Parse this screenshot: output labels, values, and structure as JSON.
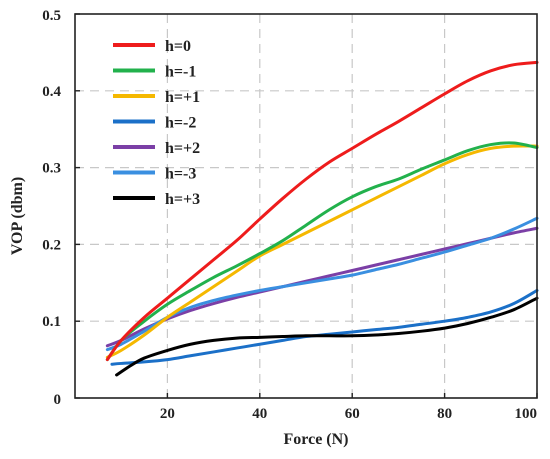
{
  "chart_data": {
    "type": "line",
    "xlabel": "Force (N)",
    "ylabel": "VOP (dbm)",
    "xlim": [
      0,
      100
    ],
    "ylim": [
      0,
      0.5
    ],
    "xticks": [
      20,
      40,
      60,
      80,
      100
    ],
    "yticks": [
      0,
      0.1,
      0.2,
      0.3,
      0.4,
      0.5
    ],
    "xtick_labels": [
      "20",
      "40",
      "60",
      "80",
      "100"
    ],
    "ytick_labels": [
      "0",
      "0.1",
      "0.2",
      "0.3",
      "0.4",
      "0.5"
    ],
    "grid": true,
    "legend_position": "top-left",
    "series": [
      {
        "name": "h=0",
        "color": "#ee1c1c",
        "x": [
          7,
          10,
          15,
          20,
          25,
          30,
          35,
          40,
          45,
          50,
          55,
          60,
          65,
          70,
          75,
          80,
          85,
          90,
          95,
          100
        ],
        "y": [
          0.05,
          0.075,
          0.105,
          0.13,
          0.155,
          0.18,
          0.205,
          0.233,
          0.26,
          0.285,
          0.307,
          0.325,
          0.343,
          0.36,
          0.378,
          0.396,
          0.413,
          0.426,
          0.434,
          0.437
        ]
      },
      {
        "name": "h=-1",
        "color": "#22b14c",
        "x": [
          7,
          10,
          15,
          20,
          25,
          30,
          35,
          40,
          45,
          50,
          55,
          60,
          65,
          70,
          75,
          80,
          85,
          90,
          95,
          100
        ],
        "y": [
          0.05,
          0.075,
          0.1,
          0.122,
          0.14,
          0.157,
          0.172,
          0.188,
          0.205,
          0.225,
          0.245,
          0.262,
          0.275,
          0.285,
          0.298,
          0.31,
          0.322,
          0.33,
          0.332,
          0.326
        ]
      },
      {
        "name": "h=+1",
        "color": "#f5b800",
        "x": [
          7,
          10,
          15,
          20,
          25,
          30,
          35,
          40,
          45,
          50,
          55,
          60,
          65,
          70,
          75,
          80,
          85,
          90,
          95,
          100
        ],
        "y": [
          0.053,
          0.062,
          0.082,
          0.105,
          0.125,
          0.145,
          0.165,
          0.185,
          0.2,
          0.215,
          0.23,
          0.245,
          0.26,
          0.275,
          0.29,
          0.305,
          0.317,
          0.325,
          0.328,
          0.328
        ]
      },
      {
        "name": "h=-2",
        "color": "#1b70c8",
        "x": [
          8,
          10,
          15,
          20,
          25,
          30,
          35,
          40,
          45,
          50,
          55,
          60,
          65,
          70,
          75,
          80,
          85,
          90,
          95,
          100
        ],
        "y": [
          0.044,
          0.045,
          0.047,
          0.05,
          0.055,
          0.06,
          0.065,
          0.07,
          0.075,
          0.08,
          0.083,
          0.086,
          0.089,
          0.092,
          0.096,
          0.1,
          0.105,
          0.112,
          0.123,
          0.14
        ]
      },
      {
        "name": "h=+2",
        "color": "#7b3fa6",
        "x": [
          7,
          10,
          15,
          20,
          25,
          30,
          35,
          40,
          45,
          50,
          55,
          60,
          65,
          70,
          75,
          80,
          85,
          90,
          95,
          100
        ],
        "y": [
          0.068,
          0.075,
          0.09,
          0.103,
          0.114,
          0.123,
          0.131,
          0.138,
          0.145,
          0.152,
          0.159,
          0.166,
          0.173,
          0.18,
          0.187,
          0.194,
          0.201,
          0.208,
          0.215,
          0.221
        ]
      },
      {
        "name": "h=-3",
        "color": "#3a8fe0",
        "x": [
          7,
          10,
          15,
          20,
          25,
          30,
          35,
          40,
          45,
          50,
          55,
          60,
          65,
          70,
          75,
          80,
          85,
          90,
          95,
          100
        ],
        "y": [
          0.063,
          0.07,
          0.087,
          0.105,
          0.118,
          0.127,
          0.134,
          0.14,
          0.145,
          0.15,
          0.155,
          0.16,
          0.167,
          0.174,
          0.182,
          0.19,
          0.199,
          0.208,
          0.22,
          0.234
        ]
      },
      {
        "name": "h=+3",
        "color": "#000000",
        "x": [
          9,
          12,
          15,
          20,
          25,
          30,
          35,
          40,
          45,
          50,
          55,
          60,
          65,
          70,
          75,
          80,
          85,
          90,
          95,
          100
        ],
        "y": [
          0.03,
          0.042,
          0.052,
          0.062,
          0.07,
          0.075,
          0.078,
          0.079,
          0.08,
          0.081,
          0.081,
          0.081,
          0.082,
          0.084,
          0.087,
          0.091,
          0.097,
          0.105,
          0.115,
          0.13
        ]
      }
    ]
  }
}
